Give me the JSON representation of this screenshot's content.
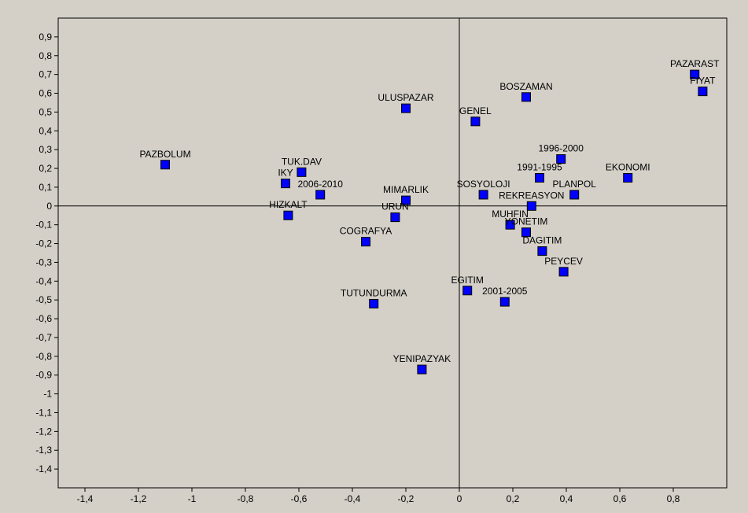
{
  "chart_data": {
    "type": "scatter",
    "title": "",
    "xlabel": "",
    "ylabel": "",
    "xlim": [
      -1.5,
      1.0
    ],
    "ylim": [
      -1.5,
      1.0
    ],
    "x_ticks": [
      "-1,4",
      "-1,2",
      "-1",
      "-0,8",
      "-0,6",
      "-0,4",
      "-0,2",
      "0",
      "0,2",
      "0,4",
      "0,6",
      "0,8"
    ],
    "y_ticks": [
      "0,9",
      "0,8",
      "0,7",
      "0,6",
      "0,5",
      "0,4",
      "0,3",
      "0,2",
      "0,1",
      "0",
      "-0,1",
      "-0,2",
      "-0,3",
      "-0,4",
      "-0,5",
      "-0,6",
      "-0,7",
      "-0,8",
      "-0,9",
      "-1",
      "-1,1",
      "-1,2",
      "-1,3",
      "-1,4"
    ],
    "grid": false,
    "legend": "none",
    "colors": {
      "marker": "#0000ff",
      "marker_border": "#000000",
      "plot_bg": "#d4d0c8",
      "axis": "#000000"
    },
    "points": [
      {
        "label": "PAZARAST",
        "x": 0.88,
        "y": 0.7
      },
      {
        "label": "FIYAT",
        "x": 0.91,
        "y": 0.61
      },
      {
        "label": "BOSZAMAN",
        "x": 0.25,
        "y": 0.58
      },
      {
        "label": "ULUSPAZAR",
        "x": -0.2,
        "y": 0.52
      },
      {
        "label": "GENEL",
        "x": 0.06,
        "y": 0.45
      },
      {
        "label": "PAZBOLUM",
        "x": -1.1,
        "y": 0.22
      },
      {
        "label": "1996-2000",
        "x": 0.38,
        "y": 0.25
      },
      {
        "label": "TUK.DAV",
        "x": -0.59,
        "y": 0.18
      },
      {
        "label": "IKY",
        "x": -0.65,
        "y": 0.12
      },
      {
        "label": "2006-2010",
        "x": -0.52,
        "y": 0.06
      },
      {
        "label": "1991-1995",
        "x": 0.3,
        "y": 0.15
      },
      {
        "label": "EKONOMI",
        "x": 0.63,
        "y": 0.15
      },
      {
        "label": "PLANPOL",
        "x": 0.43,
        "y": 0.06
      },
      {
        "label": "SOSYOLOJI",
        "x": 0.09,
        "y": 0.06
      },
      {
        "label": "MIMARLIK",
        "x": -0.2,
        "y": 0.03
      },
      {
        "label": "REKREASYON",
        "x": 0.27,
        "y": 0.0
      },
      {
        "label": "HIZKALT",
        "x": -0.64,
        "y": -0.05
      },
      {
        "label": "URUN",
        "x": -0.24,
        "y": -0.06
      },
      {
        "label": "MUHFIN",
        "x": 0.19,
        "y": -0.1
      },
      {
        "label": "YONETIM",
        "x": 0.25,
        "y": -0.14
      },
      {
        "label": "COGRAFYA",
        "x": -0.35,
        "y": -0.19
      },
      {
        "label": "DAGITIM",
        "x": 0.31,
        "y": -0.24
      },
      {
        "label": "PEYCEV",
        "x": 0.39,
        "y": -0.35
      },
      {
        "label": "EGITIM",
        "x": 0.03,
        "y": -0.45
      },
      {
        "label": "2001-2005",
        "x": 0.17,
        "y": -0.51
      },
      {
        "label": "TUTUNDURMA",
        "x": -0.32,
        "y": -0.52
      },
      {
        "label": "YENIPAZYAK",
        "x": -0.14,
        "y": -0.87
      }
    ]
  }
}
